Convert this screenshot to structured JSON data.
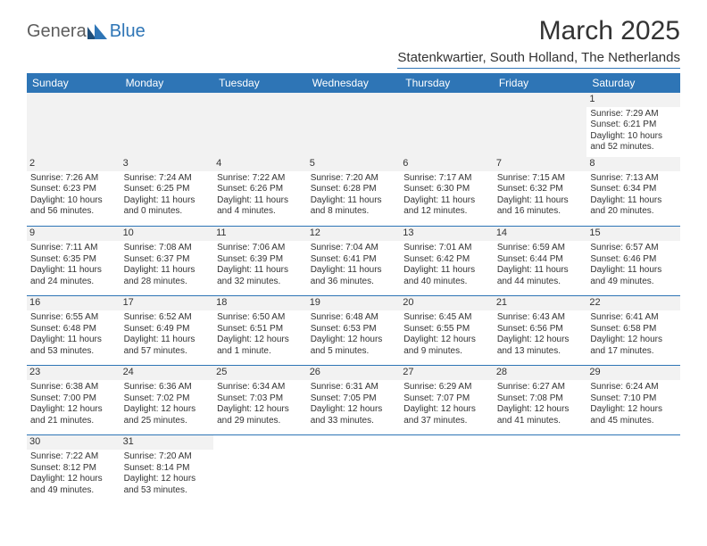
{
  "header": {
    "logo_gray": "Genera",
    "logo_blue": "Blue",
    "title": "March 2025",
    "subtitle": "Statenkwartier, South Holland, The Netherlands"
  },
  "calendar": {
    "header_bg": "#2e75b6",
    "header_fg": "#ffffff",
    "daynum_bg": "#f2f2f2",
    "border_color": "#2e75b6",
    "daynames": [
      "Sunday",
      "Monday",
      "Tuesday",
      "Wednesday",
      "Thursday",
      "Friday",
      "Saturday"
    ],
    "weeks": [
      [
        null,
        null,
        null,
        null,
        null,
        null,
        {
          "n": "1",
          "sr": "Sunrise: 7:29 AM",
          "ss": "Sunset: 6:21 PM",
          "dl": "Daylight: 10 hours and 52 minutes."
        }
      ],
      [
        {
          "n": "2",
          "sr": "Sunrise: 7:26 AM",
          "ss": "Sunset: 6:23 PM",
          "dl": "Daylight: 10 hours and 56 minutes."
        },
        {
          "n": "3",
          "sr": "Sunrise: 7:24 AM",
          "ss": "Sunset: 6:25 PM",
          "dl": "Daylight: 11 hours and 0 minutes."
        },
        {
          "n": "4",
          "sr": "Sunrise: 7:22 AM",
          "ss": "Sunset: 6:26 PM",
          "dl": "Daylight: 11 hours and 4 minutes."
        },
        {
          "n": "5",
          "sr": "Sunrise: 7:20 AM",
          "ss": "Sunset: 6:28 PM",
          "dl": "Daylight: 11 hours and 8 minutes."
        },
        {
          "n": "6",
          "sr": "Sunrise: 7:17 AM",
          "ss": "Sunset: 6:30 PM",
          "dl": "Daylight: 11 hours and 12 minutes."
        },
        {
          "n": "7",
          "sr": "Sunrise: 7:15 AM",
          "ss": "Sunset: 6:32 PM",
          "dl": "Daylight: 11 hours and 16 minutes."
        },
        {
          "n": "8",
          "sr": "Sunrise: 7:13 AM",
          "ss": "Sunset: 6:34 PM",
          "dl": "Daylight: 11 hours and 20 minutes."
        }
      ],
      [
        {
          "n": "9",
          "sr": "Sunrise: 7:11 AM",
          "ss": "Sunset: 6:35 PM",
          "dl": "Daylight: 11 hours and 24 minutes."
        },
        {
          "n": "10",
          "sr": "Sunrise: 7:08 AM",
          "ss": "Sunset: 6:37 PM",
          "dl": "Daylight: 11 hours and 28 minutes."
        },
        {
          "n": "11",
          "sr": "Sunrise: 7:06 AM",
          "ss": "Sunset: 6:39 PM",
          "dl": "Daylight: 11 hours and 32 minutes."
        },
        {
          "n": "12",
          "sr": "Sunrise: 7:04 AM",
          "ss": "Sunset: 6:41 PM",
          "dl": "Daylight: 11 hours and 36 minutes."
        },
        {
          "n": "13",
          "sr": "Sunrise: 7:01 AM",
          "ss": "Sunset: 6:42 PM",
          "dl": "Daylight: 11 hours and 40 minutes."
        },
        {
          "n": "14",
          "sr": "Sunrise: 6:59 AM",
          "ss": "Sunset: 6:44 PM",
          "dl": "Daylight: 11 hours and 44 minutes."
        },
        {
          "n": "15",
          "sr": "Sunrise: 6:57 AM",
          "ss": "Sunset: 6:46 PM",
          "dl": "Daylight: 11 hours and 49 minutes."
        }
      ],
      [
        {
          "n": "16",
          "sr": "Sunrise: 6:55 AM",
          "ss": "Sunset: 6:48 PM",
          "dl": "Daylight: 11 hours and 53 minutes."
        },
        {
          "n": "17",
          "sr": "Sunrise: 6:52 AM",
          "ss": "Sunset: 6:49 PM",
          "dl": "Daylight: 11 hours and 57 minutes."
        },
        {
          "n": "18",
          "sr": "Sunrise: 6:50 AM",
          "ss": "Sunset: 6:51 PM",
          "dl": "Daylight: 12 hours and 1 minute."
        },
        {
          "n": "19",
          "sr": "Sunrise: 6:48 AM",
          "ss": "Sunset: 6:53 PM",
          "dl": "Daylight: 12 hours and 5 minutes."
        },
        {
          "n": "20",
          "sr": "Sunrise: 6:45 AM",
          "ss": "Sunset: 6:55 PM",
          "dl": "Daylight: 12 hours and 9 minutes."
        },
        {
          "n": "21",
          "sr": "Sunrise: 6:43 AM",
          "ss": "Sunset: 6:56 PM",
          "dl": "Daylight: 12 hours and 13 minutes."
        },
        {
          "n": "22",
          "sr": "Sunrise: 6:41 AM",
          "ss": "Sunset: 6:58 PM",
          "dl": "Daylight: 12 hours and 17 minutes."
        }
      ],
      [
        {
          "n": "23",
          "sr": "Sunrise: 6:38 AM",
          "ss": "Sunset: 7:00 PM",
          "dl": "Daylight: 12 hours and 21 minutes."
        },
        {
          "n": "24",
          "sr": "Sunrise: 6:36 AM",
          "ss": "Sunset: 7:02 PM",
          "dl": "Daylight: 12 hours and 25 minutes."
        },
        {
          "n": "25",
          "sr": "Sunrise: 6:34 AM",
          "ss": "Sunset: 7:03 PM",
          "dl": "Daylight: 12 hours and 29 minutes."
        },
        {
          "n": "26",
          "sr": "Sunrise: 6:31 AM",
          "ss": "Sunset: 7:05 PM",
          "dl": "Daylight: 12 hours and 33 minutes."
        },
        {
          "n": "27",
          "sr": "Sunrise: 6:29 AM",
          "ss": "Sunset: 7:07 PM",
          "dl": "Daylight: 12 hours and 37 minutes."
        },
        {
          "n": "28",
          "sr": "Sunrise: 6:27 AM",
          "ss": "Sunset: 7:08 PM",
          "dl": "Daylight: 12 hours and 41 minutes."
        },
        {
          "n": "29",
          "sr": "Sunrise: 6:24 AM",
          "ss": "Sunset: 7:10 PM",
          "dl": "Daylight: 12 hours and 45 minutes."
        }
      ],
      [
        {
          "n": "30",
          "sr": "Sunrise: 7:22 AM",
          "ss": "Sunset: 8:12 PM",
          "dl": "Daylight: 12 hours and 49 minutes."
        },
        {
          "n": "31",
          "sr": "Sunrise: 7:20 AM",
          "ss": "Sunset: 8:14 PM",
          "dl": "Daylight: 12 hours and 53 minutes."
        },
        null,
        null,
        null,
        null,
        null
      ]
    ]
  }
}
